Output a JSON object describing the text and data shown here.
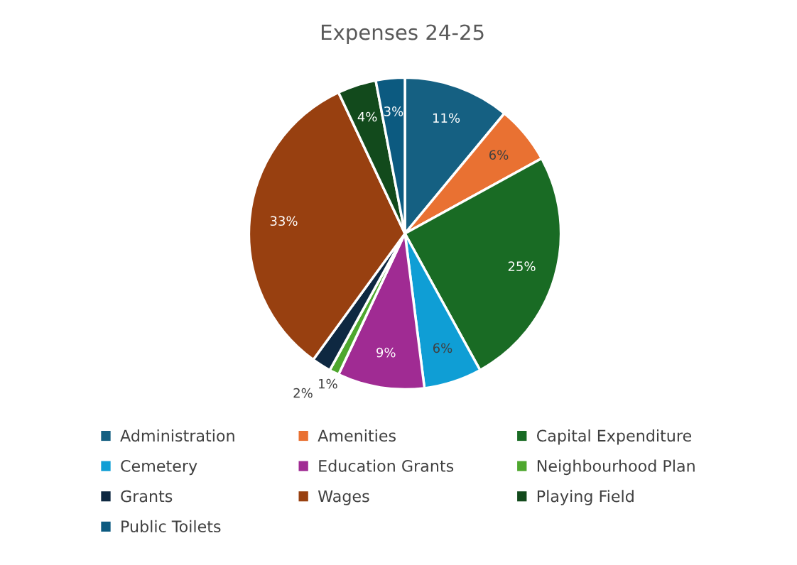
{
  "chart_data": {
    "type": "pie",
    "title": "Expenses 24-25",
    "categories": [
      "Administration",
      "Amenities",
      "Capital Expenditure",
      "Cemetery",
      "Education Grants",
      "Neighbourhood Plan",
      "Grants",
      "Wages",
      "Playing Field",
      "Public Toilets"
    ],
    "values": [
      11,
      6,
      25,
      6,
      9,
      1,
      2,
      33,
      4,
      3
    ],
    "colors": [
      "#156082",
      "#e97132",
      "#196b24",
      "#0f9ed5",
      "#a02b93",
      "#4ea72e",
      "#0e2841",
      "#984010",
      "#124a1c",
      "#0c5a80"
    ],
    "value_labels": [
      "11%",
      "6%",
      "25%",
      "6%",
      "9%",
      "1%",
      "2%",
      "33%",
      "4%",
      "3%"
    ],
    "legend": "bottom"
  }
}
